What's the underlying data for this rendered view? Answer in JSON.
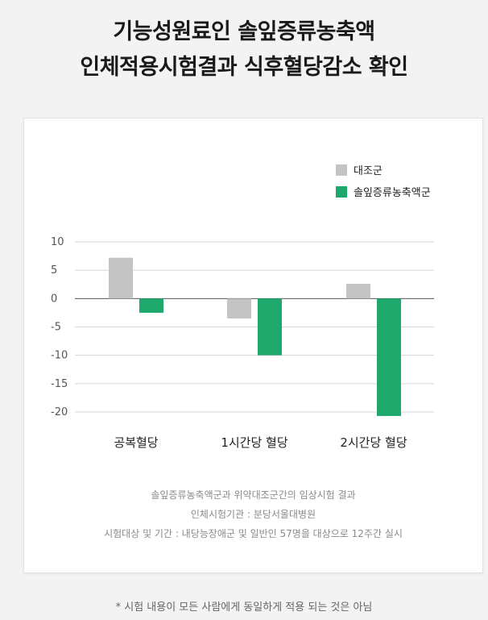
{
  "title_lines": [
    "기능성원료인 솔잎증류농축액",
    "인체적용시험결과 식후혈당감소 확인"
  ],
  "chart_data": {
    "type": "bar",
    "categories": [
      "공복혈당",
      "1시간당 혈당",
      "2시간당 혈당"
    ],
    "series": [
      {
        "name": "대조군",
        "values": [
          7.2,
          -3.5,
          2.6
        ],
        "color": "#c4c4c4"
      },
      {
        "name": "솔잎증류농축액군",
        "values": [
          -2.5,
          -10.0,
          -20.7
        ],
        "color": "#1fa86c"
      }
    ],
    "ylim": [
      -20,
      10
    ],
    "yticks": [
      10,
      5,
      0,
      -5,
      -10,
      -15,
      -20
    ],
    "grid": true,
    "legend": "top-right"
  },
  "notes": [
    "솔잎증류농축액군과 위약대조군간의 임상시험 결과",
    "인체시험기관 : 분당서울대병원",
    "시험대상 및 기간 : 내당능장애군 및 일반인 57명을 대상으로 12주간 실시"
  ],
  "footnote": "* 시험 내용이 모든 사람에게 동일하게 적용 되는 것은 아님"
}
